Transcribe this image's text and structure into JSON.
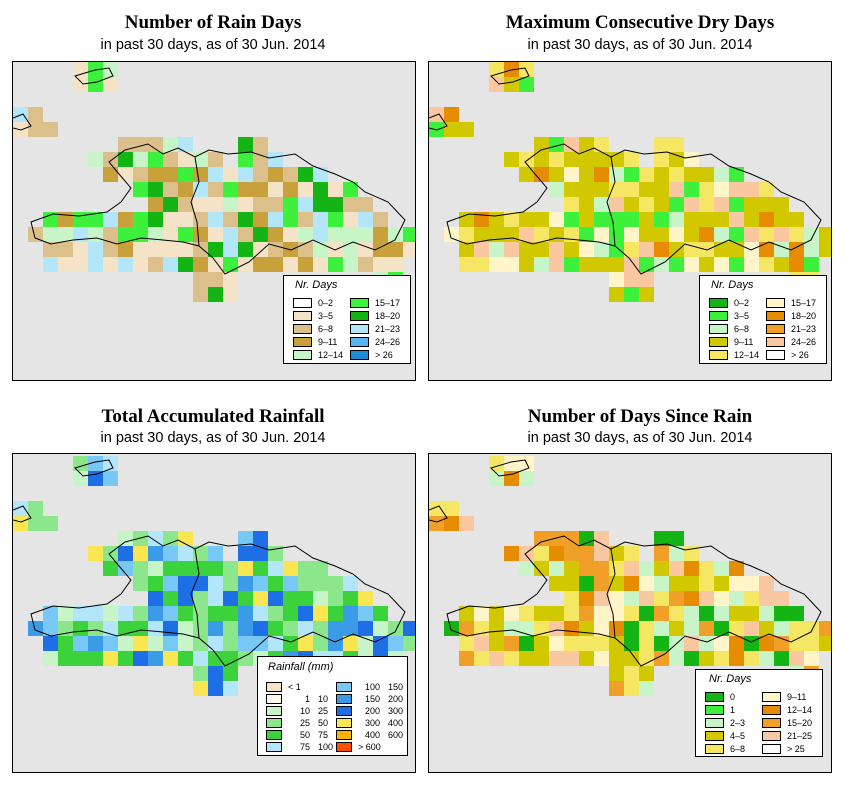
{
  "panels": [
    {
      "title": "Number of Rain Days",
      "subtitle": "in past 30 days, as of  30 Jun. 2014",
      "legend_title": "Nr. Days",
      "legend": [
        {
          "label": "0–2",
          "color": "#ffffff"
        },
        {
          "label": "3–5",
          "color": "#f5e3c8"
        },
        {
          "label": "6–8",
          "color": "#dcc08c"
        },
        {
          "label": "9–11",
          "color": "#c8a03c"
        },
        {
          "label": "12–14",
          "color": "#c8f5c8"
        },
        {
          "label": "15–17",
          "color": "#3cf03c"
        },
        {
          "label": "18–20",
          "color": "#14b414"
        },
        {
          "label": "21–23",
          "color": "#b4e6fa"
        },
        {
          "label": "24–26",
          "color": "#5ab4f0"
        },
        {
          "label": "> 26",
          "color": "#1e8cd2"
        }
      ]
    },
    {
      "title": "Maximum Consecutive Dry Days",
      "subtitle": "in past 30 days, as of  30 Jun. 2014",
      "legend_title": "Nr. Days",
      "legend": [
        {
          "label": "0–2",
          "color": "#14b414"
        },
        {
          "label": "3–5",
          "color": "#3cf03c"
        },
        {
          "label": "6–8",
          "color": "#c8f5c8"
        },
        {
          "label": "9–11",
          "color": "#d2c800"
        },
        {
          "label": "12–14",
          "color": "#f5e664"
        },
        {
          "label": "15–17",
          "color": "#fff5c8"
        },
        {
          "label": "18–20",
          "color": "#e68c00"
        },
        {
          "label": "21–23",
          "color": "#f0a028"
        },
        {
          "label": "24–26",
          "color": "#fac8a0"
        },
        {
          "label": "> 26",
          "color": "#ffffff"
        }
      ]
    },
    {
      "title": "Total Accumulated Rainfall",
      "subtitle": "in past 30 days, as of  30 Jun. 2014",
      "legend_title": "Rainfall (mm)",
      "legend": [
        {
          "label_a": "< 1",
          "label_b": "",
          "color": "#f5e3c8"
        },
        {
          "label_a": "1",
          "label_b": "10",
          "color": "#fffaf0"
        },
        {
          "label_a": "10",
          "label_b": "25",
          "color": "#c8f5c8"
        },
        {
          "label_a": "25",
          "label_b": "50",
          "color": "#8ce68c"
        },
        {
          "label_a": "50",
          "label_b": "75",
          "color": "#3cd23c"
        },
        {
          "label_a": "75",
          "label_b": "100",
          "color": "#b4e6fa"
        },
        {
          "label_a": "100",
          "label_b": "150",
          "color": "#78c8f5"
        },
        {
          "label_a": "150",
          "label_b": "200",
          "color": "#3c9be6"
        },
        {
          "label_a": "200",
          "label_b": "300",
          "color": "#1e6ee6"
        },
        {
          "label_a": "300",
          "label_b": "400",
          "color": "#fae650"
        },
        {
          "label_a": "400",
          "label_b": "600",
          "color": "#fab400"
        },
        {
          "label_a": "> 600",
          "label_b": "",
          "color": "#ff5000"
        }
      ]
    },
    {
      "title": "Number of Days Since Rain",
      "subtitle": "in past 30 days, as of  30 Jun. 2014",
      "legend_title": "Nr. Days",
      "legend": [
        {
          "label": "0",
          "color": "#14b414"
        },
        {
          "label": "1",
          "color": "#3cf03c"
        },
        {
          "label": "2–3",
          "color": "#c8f5c8"
        },
        {
          "label": "4–5",
          "color": "#d2c800"
        },
        {
          "label": "6–8",
          "color": "#f5e664"
        },
        {
          "label": "9–11",
          "color": "#fff5c8"
        },
        {
          "label": "12–14",
          "color": "#e68c00"
        },
        {
          "label": "15–20",
          "color": "#f0a028"
        },
        {
          "label": "21–25",
          "color": "#fac8a0"
        },
        {
          "label": "> 25",
          "color": "#ffffff"
        }
      ]
    }
  ]
}
